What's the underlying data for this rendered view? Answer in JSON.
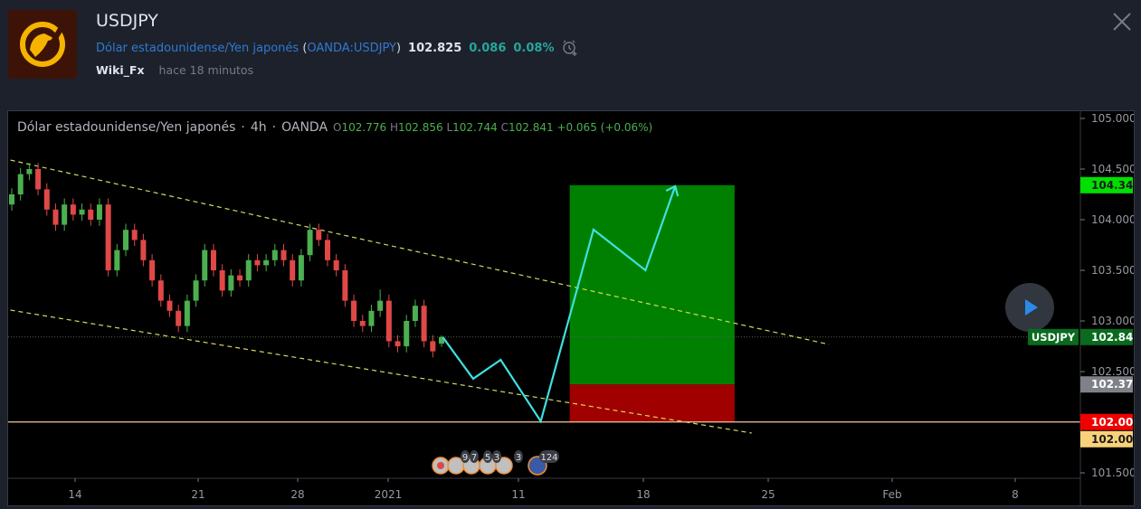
{
  "header": {
    "title": "USDJPY",
    "symbol_name": "Dólar estadounidense/Yen japonés",
    "symbol_code": "OANDA:USDJPY",
    "price": "102.825",
    "change": "0.086",
    "change_pct": "0.08%",
    "author": "Wiki_Fx",
    "published": "hace 18 minutos",
    "icons": {
      "alert": "alarm-clock-plus-icon",
      "close": "close-icon",
      "logo": "eagle-logo"
    }
  },
  "chart": {
    "legend": {
      "title": "Dólar estadounidense/Yen japonés",
      "interval": "4h",
      "exchange": "OANDA",
      "o_label": "O",
      "o": "102.776",
      "h_label": "H",
      "h": "102.856",
      "l_label": "L",
      "l": "102.744",
      "c_label": "C",
      "c": "102.841",
      "change": "+0.065 (+0.06%)"
    },
    "colors": {
      "up": "#4caf50",
      "down": "#e04848",
      "trend": "#d8d860",
      "projection": "#40e0e0",
      "target": "#008000",
      "stop": "#a00000",
      "level": "#f3c8a0"
    }
  },
  "chart_data": {
    "type": "candlestick",
    "ylim": [
      101.3,
      105.1
    ],
    "y_ticks": [
      "105.000",
      "104.500",
      "104.000",
      "103.500",
      "103.000",
      "102.500",
      "101.500"
    ],
    "x_ticks": [
      "14",
      "21",
      "28",
      "2021",
      "11",
      "18",
      "25",
      "Feb",
      "8"
    ],
    "candles": [
      [
        104.15,
        104.31,
        104.09,
        104.25
      ],
      [
        104.25,
        104.51,
        104.19,
        104.45
      ],
      [
        104.45,
        104.56,
        104.39,
        104.5
      ],
      [
        104.5,
        104.56,
        104.24,
        104.3
      ],
      [
        104.3,
        104.36,
        104.04,
        104.1
      ],
      [
        104.1,
        104.16,
        103.89,
        103.95
      ],
      [
        103.95,
        104.21,
        103.89,
        104.15
      ],
      [
        104.15,
        104.21,
        103.99,
        104.05
      ],
      [
        104.05,
        104.16,
        103.99,
        104.1
      ],
      [
        104.1,
        104.16,
        103.94,
        104.0
      ],
      [
        104.0,
        104.21,
        103.94,
        104.15
      ],
      [
        104.15,
        104.21,
        103.44,
        103.5
      ],
      [
        103.5,
        103.76,
        103.44,
        103.7
      ],
      [
        103.7,
        103.96,
        103.64,
        103.9
      ],
      [
        103.9,
        103.96,
        103.74,
        103.8
      ],
      [
        103.8,
        103.86,
        103.54,
        103.6
      ],
      [
        103.6,
        103.66,
        103.34,
        103.4
      ],
      [
        103.4,
        103.46,
        103.14,
        103.2
      ],
      [
        103.2,
        103.26,
        103.04,
        103.1
      ],
      [
        103.1,
        103.16,
        102.89,
        102.95
      ],
      [
        102.95,
        103.26,
        102.89,
        103.2
      ],
      [
        103.2,
        103.46,
        103.14,
        103.4
      ],
      [
        103.4,
        103.76,
        103.34,
        103.7
      ],
      [
        103.7,
        103.76,
        103.44,
        103.5
      ],
      [
        103.5,
        103.56,
        103.24,
        103.3
      ],
      [
        103.3,
        103.51,
        103.24,
        103.45
      ],
      [
        103.45,
        103.51,
        103.34,
        103.4
      ],
      [
        103.4,
        103.66,
        103.34,
        103.6
      ],
      [
        103.6,
        103.66,
        103.49,
        103.55
      ],
      [
        103.55,
        103.66,
        103.49,
        103.6
      ],
      [
        103.6,
        103.76,
        103.54,
        103.7
      ],
      [
        103.7,
        103.76,
        103.54,
        103.6
      ],
      [
        103.6,
        103.66,
        103.34,
        103.4
      ],
      [
        103.4,
        103.71,
        103.34,
        103.65
      ],
      [
        103.65,
        103.96,
        103.59,
        103.9
      ],
      [
        103.9,
        103.96,
        103.74,
        103.8
      ],
      [
        103.8,
        103.86,
        103.54,
        103.6
      ],
      [
        103.6,
        103.66,
        103.44,
        103.5
      ],
      [
        103.5,
        103.56,
        103.14,
        103.2
      ],
      [
        103.2,
        103.26,
        102.94,
        103.0
      ],
      [
        103.0,
        103.06,
        102.89,
        102.95
      ],
      [
        102.95,
        103.16,
        102.89,
        103.1
      ],
      [
        103.1,
        103.31,
        103.04,
        103.2
      ],
      [
        103.2,
        103.26,
        102.74,
        102.8
      ],
      [
        102.8,
        102.86,
        102.69,
        102.75
      ],
      [
        102.75,
        103.06,
        102.69,
        103.0
      ],
      [
        103.0,
        103.21,
        102.94,
        103.15
      ],
      [
        103.15,
        103.21,
        102.74,
        102.8
      ],
      [
        102.8,
        102.86,
        102.64,
        102.7
      ],
      [
        102.776,
        102.856,
        102.744,
        102.841
      ]
    ],
    "trend_lines": [
      {
        "from": [
          "2020-12-13T12:00",
          104.589
        ],
        "to": [
          "2021-01-28T10:00",
          102.768
        ]
      },
      {
        "from": [
          "2020-12-13T12:00",
          103.107
        ],
        "to": [
          "2021-01-24T02:00",
          101.893
        ]
      }
    ],
    "projection": [
      [
        "2021-01-06T18:00",
        102.841
      ],
      [
        "2021-01-08T11:00",
        102.429
      ],
      [
        "2021-01-10T00:00",
        102.616
      ],
      [
        "2021-01-12T06:00",
        102.009
      ],
      [
        "2021-01-15T05:00",
        103.902
      ],
      [
        "2021-01-18T03:00",
        103.5
      ],
      [
        "2021-01-19T19:00",
        104.33
      ]
    ],
    "long_position": {
      "from": "2021-01-13T21:00",
      "to": "2021-01-23T03:00",
      "entry": 102.373,
      "target": 104.341,
      "stop": 102.002
    },
    "horizontal_level": 102.002,
    "last_price": 102.841,
    "price_labels": [
      {
        "text": "104.341",
        "bg": "#00e000",
        "fg": "#1a1a1a"
      },
      {
        "text": "102.841",
        "bg": "#0a6b1f",
        "fg": "#ffffff",
        "tag": "USDJPY"
      },
      {
        "text": "102.373",
        "bg": "#7e8189",
        "fg": "#ffffff"
      },
      {
        "text": "102.002",
        "bg": "#f00000",
        "fg": "#ffffff"
      },
      {
        "text": "102.002",
        "bg": "#f7d27a",
        "fg": "#1a1a1a"
      }
    ],
    "events": [
      "9",
      "7",
      "5",
      "3",
      "3",
      "124"
    ]
  }
}
